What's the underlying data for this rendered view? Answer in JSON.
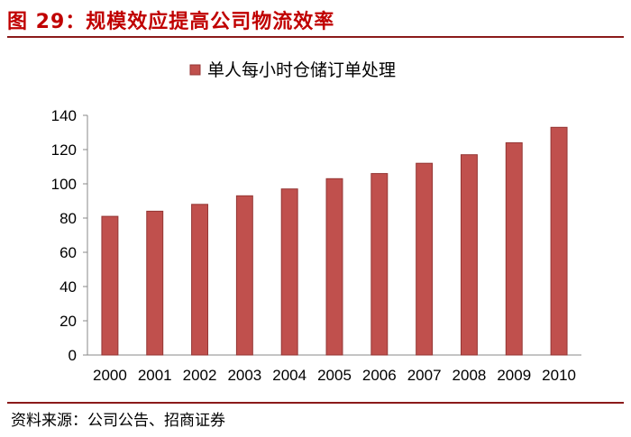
{
  "figure": {
    "title": "图 29：规模效应提高公司物流效率",
    "source": "资料来源：公司公告、招商证券"
  },
  "colors": {
    "title": "#c00000",
    "bar": "#c0504d",
    "bar_edge": "#943634",
    "rule": "#8b1a1a"
  },
  "chart_data": {
    "type": "bar",
    "categories": [
      "2000",
      "2001",
      "2002",
      "2003",
      "2004",
      "2005",
      "2006",
      "2007",
      "2008",
      "2009",
      "2010"
    ],
    "series": [
      {
        "name": "单人每小时仓储订单处理",
        "values": [
          81,
          84,
          88,
          93,
          97,
          103,
          106,
          112,
          117,
          124,
          133
        ]
      }
    ],
    "ylim": [
      0,
      140
    ],
    "yticks": [
      0,
      20,
      40,
      60,
      80,
      100,
      120,
      140
    ],
    "legend_position": "top-center",
    "grid": false
  }
}
